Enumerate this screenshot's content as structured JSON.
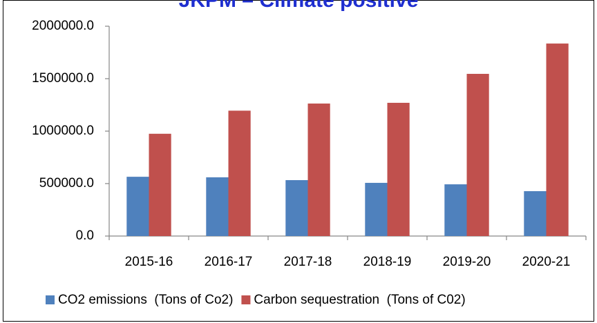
{
  "chart_data": {
    "type": "bar",
    "title": "JKPM – Climate positive",
    "categories": [
      "2015-16",
      "2016-17",
      "2017-18",
      "2018-19",
      "2019-20",
      "2020-21"
    ],
    "series": [
      {
        "name": "CO2 emissions  (Tons of Co2)",
        "color": "#4f81bd",
        "values": [
          565000,
          560000,
          533000,
          507000,
          493000,
          428000
        ]
      },
      {
        "name": "Carbon sequestration  (Tons of C02)",
        "color": "#c0504d",
        "values": [
          975000,
          1195000,
          1263000,
          1270000,
          1546000,
          1835000
        ]
      }
    ],
    "ylim": [
      0,
      2000000
    ],
    "yticks": [
      {
        "value": 0,
        "label": "0.0"
      },
      {
        "value": 500000,
        "label": "500000.0"
      },
      {
        "value": 1000000,
        "label": "1000000.0"
      },
      {
        "value": 1500000,
        "label": "1500000.0"
      },
      {
        "value": 2000000,
        "label": "2000000.0"
      }
    ],
    "grid": false,
    "legend": "bottom"
  }
}
